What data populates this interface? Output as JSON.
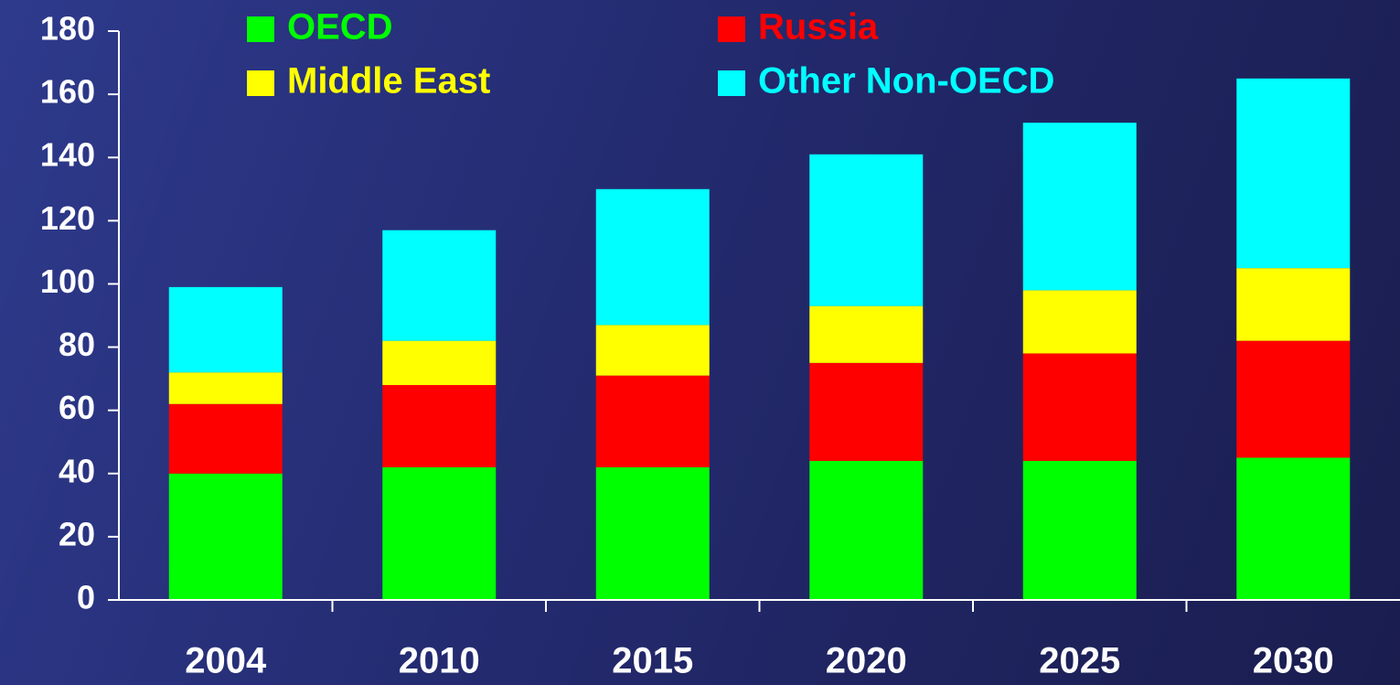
{
  "chart_data": {
    "type": "bar",
    "stacked": true,
    "categories": [
      "2004",
      "2010",
      "2015",
      "2020",
      "2025",
      "2030"
    ],
    "series": [
      {
        "name": "OECD",
        "color": "#00ff00",
        "values": [
          40,
          42,
          42,
          44,
          44,
          45
        ]
      },
      {
        "name": "Russia",
        "color": "#ff0000",
        "values": [
          22,
          26,
          29,
          31,
          34,
          37
        ]
      },
      {
        "name": "Middle East",
        "color": "#ffff00",
        "values": [
          10,
          14,
          16,
          18,
          20,
          23
        ]
      },
      {
        "name": "Other Non-OECD",
        "color": "#00ffff",
        "values": [
          27,
          35,
          43,
          48,
          53,
          60
        ]
      }
    ],
    "ylim": [
      0,
      180
    ],
    "yticks": [
      0,
      20,
      40,
      60,
      80,
      100,
      120,
      140,
      160,
      180
    ],
    "grid": false,
    "legend": "top"
  }
}
